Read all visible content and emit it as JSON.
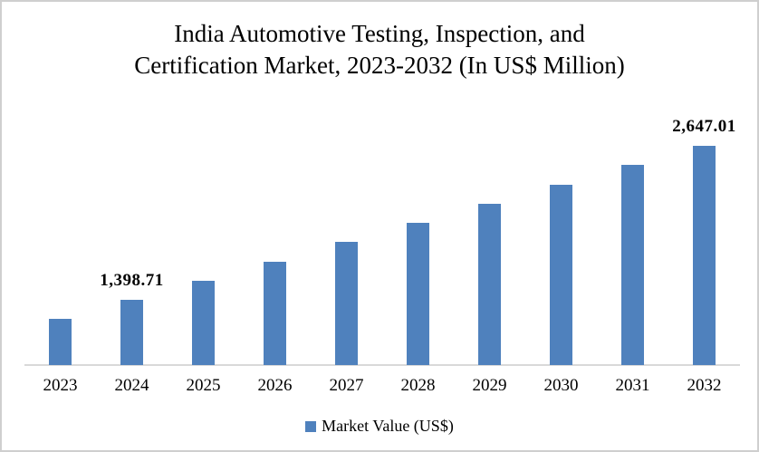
{
  "title": {
    "line1": "India Automotive Testing, Inspection, and",
    "line2": "Certification Market, 2023-2032 (In US$ Million)"
  },
  "legend": {
    "label": "Market Value (US$)",
    "marker": "square-icon"
  },
  "colors": {
    "bar": "#4F81BD",
    "axis_line": "#D9D9D9",
    "canvas_border": "#CFCFCF",
    "background": "#FFFFFF",
    "text": "#000000"
  },
  "chart_data": {
    "type": "bar",
    "title": "India Automotive Testing, Inspection, and Certification Market, 2023-2032 (In US$ Million)",
    "xlabel": "",
    "ylabel": "",
    "categories": [
      "2023",
      "2024",
      "2025",
      "2026",
      "2027",
      "2028",
      "2029",
      "2030",
      "2031",
      "2032"
    ],
    "series": [
      {
        "name": "Market Value (US$)",
        "values": [
          1242.67,
          1398.71,
          1554.75,
          1710.79,
          1866.83,
          2022.87,
          2178.91,
          2334.95,
          2490.97,
          2647.01
        ]
      }
    ],
    "data_labels": [
      null,
      "1,398.71",
      null,
      null,
      null,
      null,
      null,
      null,
      null,
      "2,647.01"
    ],
    "ylim": [
      870,
      2750
    ],
    "grid": false,
    "y_axis_visible": false,
    "legend_position": "bottom",
    "bar_color": "#4F81BD"
  }
}
